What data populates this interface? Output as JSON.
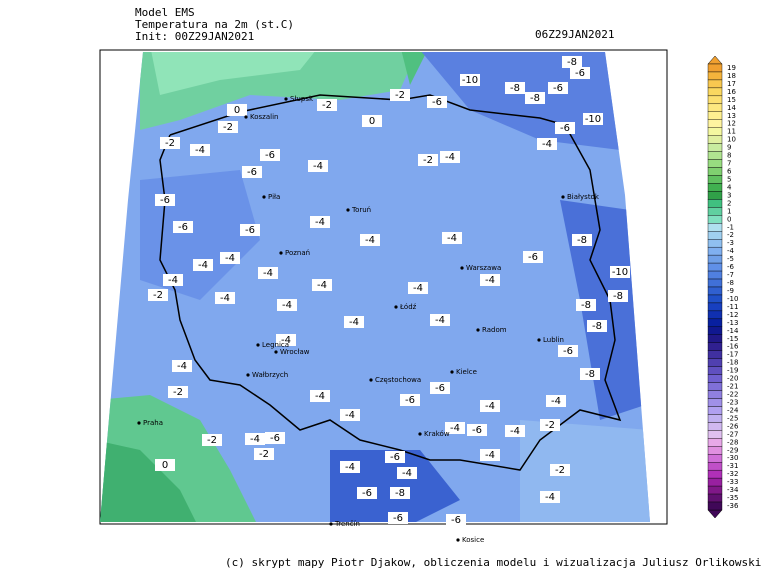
{
  "header": {
    "lines": [
      "Model EMS",
      "Temperatura na 2m (st.C)",
      "Init: 00Z29JAN2021"
    ],
    "valid": "06Z29JAN2021"
  },
  "footer": "(c) skrypt mapy Piotr Djakow, obliczenia modelu i wizualizacja Juliusz Orlikowski",
  "colorbar": {
    "levels": [
      19,
      18,
      17,
      16,
      15,
      14,
      13,
      12,
      11,
      10,
      9,
      8,
      7,
      6,
      5,
      4,
      3,
      2,
      1,
      0,
      -1,
      -2,
      -3,
      -4,
      -5,
      -6,
      -7,
      -8,
      -9,
      -10,
      -11,
      -12,
      -13,
      -14,
      -15,
      -16,
      -17,
      -18,
      -19,
      -20,
      -21,
      -22,
      -23,
      -24,
      -25,
      -26,
      -27,
      -28,
      -29,
      -30,
      -31,
      -32,
      -33,
      -34,
      -35,
      -36
    ],
    "colors": [
      "#f0a030",
      "#f5b43c",
      "#f8c850",
      "#fad860",
      "#fce070",
      "#fde880",
      "#fef090",
      "#fff4a0",
      "#f4f8a0",
      "#e0f0a0",
      "#c8eca0",
      "#b0e490",
      "#98dc80",
      "#80d070",
      "#60c060",
      "#40b050",
      "#30a048",
      "#40c080",
      "#60d0a0",
      "#80e0c0",
      "#b0e0f0",
      "#a0d0f0",
      "#90c0f0",
      "#80b0f0",
      "#70a0e8",
      "#6090e8",
      "#5080e0",
      "#4070d8",
      "#3060d0",
      "#2050c8",
      "#1840c0",
      "#1030b0",
      "#0820a0",
      "#101890",
      "#201888",
      "#302090",
      "#4030a0",
      "#5040b0",
      "#6050c0",
      "#7060d0",
      "#8070d8",
      "#9080e0",
      "#a090e8",
      "#b0a0f0",
      "#c0b0f0",
      "#d0b8f0",
      "#e0c0f0",
      "#e8a8e8",
      "#e090e0",
      "#d070d8",
      "#c050c8",
      "#b030b8",
      "#9820a0",
      "#801888",
      "#601070",
      "#400858"
    ]
  },
  "contour_labels": [
    -10,
    -8,
    -6,
    -8,
    -8,
    -6,
    -2,
    -6,
    -2,
    0,
    -2,
    0,
    -6,
    -10,
    -4,
    -2,
    -4,
    -2,
    -4,
    -6,
    -4,
    -6,
    -6,
    -4,
    -6,
    -6,
    -4,
    -4,
    -8,
    -4,
    -4,
    -6,
    -10,
    -4,
    -4,
    -4,
    -4,
    -2,
    -4,
    -8,
    -8,
    -4,
    -4,
    -4,
    -4,
    -8,
    -4,
    -6,
    -4,
    -8,
    -2,
    -6,
    -4,
    -6,
    -4,
    -4,
    -4,
    -2,
    -4,
    -6,
    -4,
    -2,
    -4,
    -6,
    -6,
    -4,
    -2,
    0,
    -4,
    -4,
    -2,
    -6,
    -8,
    -4,
    -6,
    -6
  ],
  "cities": [
    "Słupsk",
    "Koszalin",
    "Toruń",
    "Piła",
    "Poznań",
    "Warszawa",
    "Łódź",
    "Radom",
    "Lublin",
    "Białystok",
    "Wrocław",
    "Legnica",
    "Wałbrzych",
    "Kielce",
    "Kraków",
    "Częstochowa",
    "Praha",
    "Trenčín",
    "Kosice"
  ]
}
